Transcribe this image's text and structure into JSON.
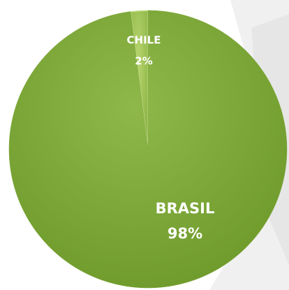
{
  "chart_data": {
    "type": "pie",
    "categories": [
      "CHILE",
      "BRASIL"
    ],
    "values": [
      2,
      98
    ],
    "value_labels": [
      "2%",
      "98%"
    ],
    "colors": [
      "#a4c65a",
      "#7ea83a"
    ]
  }
}
